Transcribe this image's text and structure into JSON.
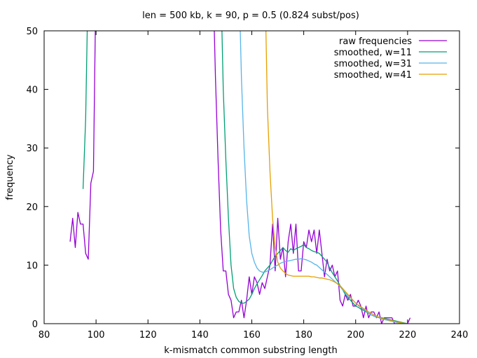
{
  "chart_data": {
    "type": "line",
    "title": "len = 500 kb,   k = 90,   p = 0.5 (0.824 subst/pos)",
    "xlabel": "k-mismatch common substring length",
    "ylabel": "frequency",
    "xlim": [
      80,
      240
    ],
    "ylim": [
      0,
      50
    ],
    "xticks": [
      80,
      100,
      120,
      140,
      160,
      180,
      200,
      220,
      240
    ],
    "yticks": [
      0,
      10,
      20,
      30,
      40,
      50
    ],
    "grid": false,
    "legend_position": "top-right",
    "series": [
      {
        "name": "raw frequencies",
        "color": "#9400d3",
        "points": [
          [
            90,
            14
          ],
          [
            91,
            18
          ],
          [
            92,
            13
          ],
          [
            93,
            19
          ],
          [
            94,
            17
          ],
          [
            95,
            17
          ],
          [
            96,
            12
          ],
          [
            97,
            11
          ],
          [
            98,
            24
          ],
          [
            99,
            26
          ],
          [
            100,
            60
          ],
          [
            145,
            60
          ],
          [
            146,
            42
          ],
          [
            147,
            28
          ],
          [
            148,
            16
          ],
          [
            149,
            9
          ],
          [
            150,
            9
          ],
          [
            151,
            5
          ],
          [
            152,
            4
          ],
          [
            153,
            1
          ],
          [
            154,
            2
          ],
          [
            155,
            2
          ],
          [
            156,
            4
          ],
          [
            157,
            1
          ],
          [
            158,
            4
          ],
          [
            159,
            8
          ],
          [
            160,
            5
          ],
          [
            161,
            8
          ],
          [
            162,
            7
          ],
          [
            163,
            5
          ],
          [
            164,
            7
          ],
          [
            165,
            6
          ],
          [
            166,
            8
          ],
          [
            167,
            10
          ],
          [
            168,
            17
          ],
          [
            169,
            9
          ],
          [
            170,
            18
          ],
          [
            171,
            11
          ],
          [
            172,
            13
          ],
          [
            173,
            8
          ],
          [
            174,
            14
          ],
          [
            175,
            17
          ],
          [
            176,
            12
          ],
          [
            177,
            17
          ],
          [
            178,
            9
          ],
          [
            179,
            9
          ],
          [
            180,
            14
          ],
          [
            181,
            13
          ],
          [
            182,
            16
          ],
          [
            183,
            14
          ],
          [
            184,
            16
          ],
          [
            185,
            12
          ],
          [
            186,
            16
          ],
          [
            187,
            12
          ],
          [
            188,
            8
          ],
          [
            189,
            11
          ],
          [
            190,
            9
          ],
          [
            191,
            10
          ],
          [
            192,
            8
          ],
          [
            193,
            9
          ],
          [
            194,
            4
          ],
          [
            195,
            3
          ],
          [
            196,
            5
          ],
          [
            197,
            4
          ],
          [
            198,
            5
          ],
          [
            199,
            3
          ],
          [
            200,
            3
          ],
          [
            201,
            4
          ],
          [
            202,
            3
          ],
          [
            203,
            1
          ],
          [
            204,
            3
          ],
          [
            205,
            1
          ],
          [
            206,
            2
          ],
          [
            207,
            2
          ],
          [
            208,
            1
          ],
          [
            209,
            2
          ],
          [
            210,
            0
          ],
          [
            211,
            1
          ],
          [
            212,
            1
          ],
          [
            213,
            1
          ],
          [
            214,
            1
          ],
          [
            215,
            0
          ],
          [
            216,
            0
          ],
          [
            217,
            0
          ],
          [
            218,
            0
          ],
          [
            219,
            0
          ],
          [
            220,
            0
          ],
          [
            221,
            1
          ]
        ]
      },
      {
        "name": "smoothed, w=11",
        "color": "#009e73",
        "points": [
          [
            95,
            23
          ],
          [
            96,
            35
          ],
          [
            97,
            60
          ],
          [
            148,
            60
          ],
          [
            149,
            40
          ],
          [
            150,
            28
          ],
          [
            151,
            18
          ],
          [
            152,
            10
          ],
          [
            153,
            6
          ],
          [
            154,
            4.5
          ],
          [
            155,
            3.8
          ],
          [
            156,
            3.5
          ],
          [
            157,
            3.5
          ],
          [
            158,
            3.8
          ],
          [
            159,
            4.2
          ],
          [
            160,
            5
          ],
          [
            161,
            6
          ],
          [
            162,
            6.8
          ],
          [
            163,
            7.5
          ],
          [
            164,
            8.2
          ],
          [
            165,
            9
          ],
          [
            166,
            9.5
          ],
          [
            167,
            10
          ],
          [
            168,
            10.8
          ],
          [
            169,
            11.5
          ],
          [
            170,
            12
          ],
          [
            171,
            12.5
          ],
          [
            172,
            13
          ],
          [
            173,
            12.5
          ],
          [
            174,
            12.2
          ],
          [
            175,
            12.8
          ],
          [
            176,
            12.5
          ],
          [
            177,
            12.8
          ],
          [
            178,
            13
          ],
          [
            179,
            13.2
          ],
          [
            180,
            13.5
          ],
          [
            181,
            13
          ],
          [
            182,
            12.8
          ],
          [
            183,
            12.5
          ],
          [
            184,
            12.3
          ],
          [
            185,
            12.2
          ],
          [
            186,
            12
          ],
          [
            187,
            11.5
          ],
          [
            188,
            11
          ],
          [
            189,
            10.5
          ],
          [
            190,
            9.5
          ],
          [
            191,
            8.7
          ],
          [
            192,
            8
          ],
          [
            193,
            7.3
          ],
          [
            194,
            6.5
          ],
          [
            195,
            5.8
          ],
          [
            196,
            5
          ],
          [
            197,
            4.5
          ],
          [
            198,
            4
          ],
          [
            199,
            3.5
          ],
          [
            200,
            3
          ],
          [
            201,
            2.8
          ],
          [
            202,
            2.5
          ],
          [
            203,
            2.3
          ],
          [
            204,
            2
          ],
          [
            205,
            1.8
          ],
          [
            206,
            1.5
          ],
          [
            207,
            1.3
          ],
          [
            208,
            1.2
          ],
          [
            209,
            1.1
          ],
          [
            210,
            1
          ],
          [
            211,
            0.9
          ],
          [
            212,
            0.8
          ],
          [
            213,
            0.7
          ],
          [
            214,
            0.6
          ],
          [
            215,
            0.5
          ],
          [
            216,
            0.4
          ],
          [
            217,
            0.3
          ],
          [
            218,
            0.2
          ],
          [
            219,
            0.1
          ],
          [
            220,
            0
          ]
        ]
      },
      {
        "name": "smoothed, w=31",
        "color": "#56b4e9",
        "points": [
          [
            155,
            60
          ],
          [
            156,
            42
          ],
          [
            157,
            30
          ],
          [
            158,
            21
          ],
          [
            159,
            15
          ],
          [
            160,
            12
          ],
          [
            161,
            10.5
          ],
          [
            162,
            9.5
          ],
          [
            163,
            9
          ],
          [
            164,
            8.8
          ],
          [
            165,
            8.8
          ],
          [
            166,
            9
          ],
          [
            167,
            9.2
          ],
          [
            168,
            9.5
          ],
          [
            169,
            9.8
          ],
          [
            170,
            10
          ],
          [
            171,
            10.3
          ],
          [
            172,
            10.5
          ],
          [
            173,
            10.6
          ],
          [
            174,
            10.7
          ],
          [
            175,
            10.8
          ],
          [
            176,
            10.9
          ],
          [
            177,
            11
          ],
          [
            178,
            11
          ],
          [
            179,
            11.1
          ],
          [
            180,
            11
          ],
          [
            181,
            10.9
          ],
          [
            182,
            10.7
          ],
          [
            183,
            10.5
          ],
          [
            184,
            10.2
          ],
          [
            185,
            10
          ],
          [
            186,
            9.6
          ],
          [
            187,
            9.2
          ],
          [
            188,
            8.8
          ],
          [
            189,
            8.4
          ],
          [
            190,
            8
          ],
          [
            191,
            7.6
          ],
          [
            192,
            7.2
          ],
          [
            193,
            6.8
          ],
          [
            194,
            6.3
          ],
          [
            195,
            5.8
          ],
          [
            196,
            5.3
          ],
          [
            197,
            4.8
          ],
          [
            198,
            4.4
          ],
          [
            199,
            4
          ],
          [
            200,
            3.5
          ],
          [
            201,
            3.1
          ],
          [
            202,
            2.8
          ],
          [
            203,
            2.5
          ],
          [
            204,
            2.1
          ],
          [
            205,
            1.8
          ],
          [
            206,
            1.5
          ],
          [
            207,
            1.3
          ],
          [
            208,
            1.1
          ],
          [
            209,
            1
          ],
          [
            210,
            0.8
          ],
          [
            211,
            0.7
          ],
          [
            212,
            0.6
          ],
          [
            213,
            0.5
          ],
          [
            214,
            0.4
          ],
          [
            215,
            0.3
          ],
          [
            216,
            0.2
          ],
          [
            217,
            0.15
          ],
          [
            218,
            0.1
          ],
          [
            219,
            0.05
          ],
          [
            220,
            0
          ]
        ]
      },
      {
        "name": "smoothed, w=41",
        "color": "#e69f00",
        "points": [
          [
            165,
            60
          ],
          [
            166,
            37
          ],
          [
            167,
            26
          ],
          [
            168,
            18
          ],
          [
            169,
            13
          ],
          [
            170,
            10.5
          ],
          [
            171,
            9.5
          ],
          [
            172,
            9
          ],
          [
            173,
            8.6
          ],
          [
            174,
            8.3
          ],
          [
            175,
            8.2
          ],
          [
            176,
            8.1
          ],
          [
            177,
            8.1
          ],
          [
            178,
            8.1
          ],
          [
            179,
            8.1
          ],
          [
            180,
            8.1
          ],
          [
            181,
            8.1
          ],
          [
            182,
            8.1
          ],
          [
            183,
            8
          ],
          [
            184,
            8
          ],
          [
            185,
            7.9
          ],
          [
            186,
            7.8
          ],
          [
            187,
            7.8
          ],
          [
            188,
            7.7
          ],
          [
            189,
            7.6
          ],
          [
            190,
            7.5
          ],
          [
            191,
            7.3
          ],
          [
            192,
            7.1
          ],
          [
            193,
            6.8
          ],
          [
            194,
            6.5
          ],
          [
            195,
            6
          ],
          [
            196,
            5.5
          ],
          [
            197,
            5
          ],
          [
            198,
            4.5
          ],
          [
            199,
            4
          ],
          [
            200,
            3.5
          ],
          [
            201,
            3.2
          ],
          [
            202,
            2.9
          ],
          [
            203,
            2.6
          ],
          [
            204,
            2.3
          ],
          [
            205,
            2
          ],
          [
            206,
            1.8
          ],
          [
            207,
            1.5
          ],
          [
            208,
            1.3
          ],
          [
            209,
            1.1
          ],
          [
            210,
            0.9
          ],
          [
            211,
            0.8
          ],
          [
            212,
            0.7
          ],
          [
            213,
            0.6
          ],
          [
            214,
            0.5
          ],
          [
            215,
            0.4
          ],
          [
            216,
            0.3
          ],
          [
            217,
            0.2
          ],
          [
            218,
            0.1
          ],
          [
            219,
            0.05
          ],
          [
            220,
            0
          ]
        ]
      }
    ]
  }
}
